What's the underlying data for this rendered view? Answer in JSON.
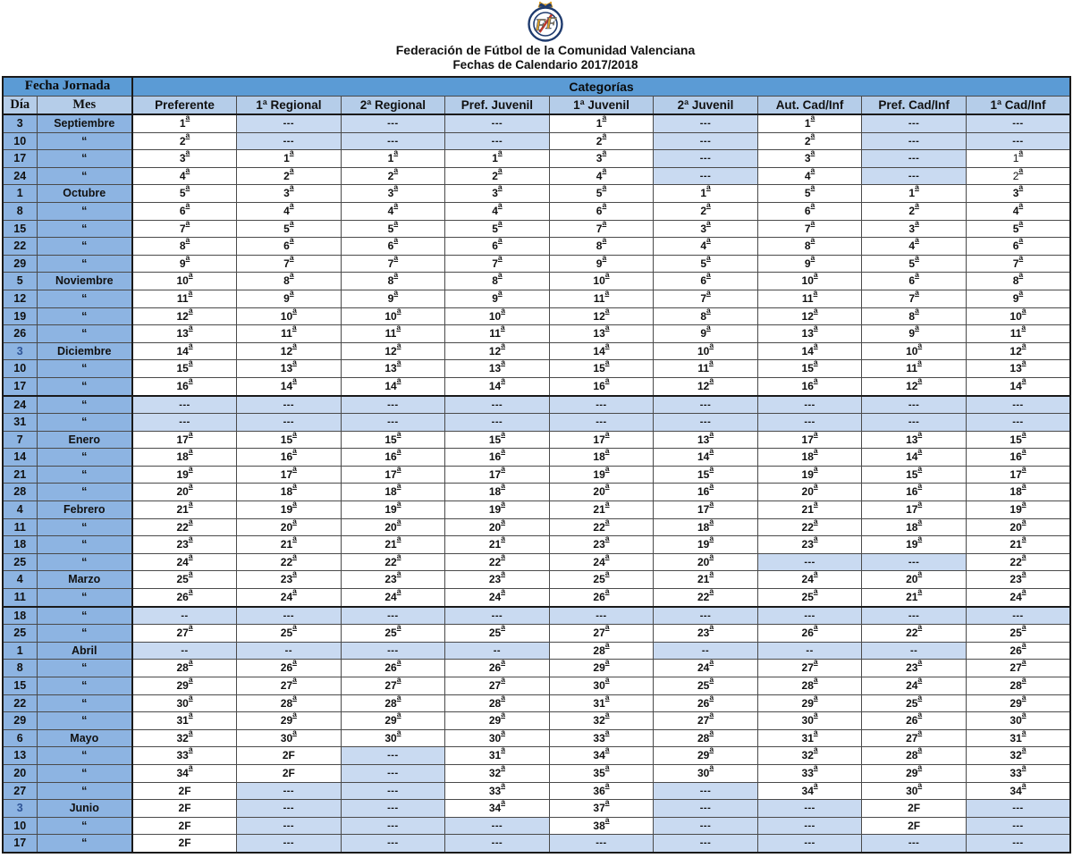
{
  "header": {
    "logo_icon": "ffcv-crest-logo",
    "title": "Federación de Fútbol de la Comunidad Valenciana",
    "subtitle": "Fechas de Calendario 2017/2018"
  },
  "colors": {
    "band_blue": "#5B9BD5",
    "column_header_blue": "#B5CDE9",
    "day_month_blue": "#8DB4E2",
    "empty_cell_blue": "#C9DAF1",
    "highlight_day_text": "#2F5496",
    "crest_navy": "#1F3B6E",
    "crest_gold": "#D99E2B",
    "crest_red": "#C0392B"
  },
  "table": {
    "corner_header": "Fecha Jornada",
    "categories_header": "Categorías",
    "day_header": "Día",
    "month_header": "Mes",
    "category_columns": [
      "Preferente",
      "1ª Regional",
      "2ª Regional",
      "Pref. Juvenil",
      "1ª Juvenil",
      "2ª Juvenil",
      "Aut. Cad/Inf",
      "Pref. Cad/Inf",
      "1ª Cad/Inf"
    ],
    "rows": [
      {
        "day": "3",
        "month": "Septiembre",
        "values": [
          "1ª",
          "---",
          "---",
          "---",
          "1ª",
          "---",
          "1ª",
          "---",
          "---"
        ]
      },
      {
        "day": "10",
        "month": "“",
        "values": [
          "2ª",
          "---",
          "---",
          "---",
          "2ª",
          "---",
          "2ª",
          "---",
          "---"
        ]
      },
      {
        "day": "17",
        "month": "“",
        "light_cells": [
          8
        ],
        "values": [
          "3ª",
          "1ª",
          "1ª",
          "1ª",
          "3ª",
          "---",
          "3ª",
          "---",
          "1ª"
        ]
      },
      {
        "day": "24",
        "month": "“",
        "light_cells": [
          8
        ],
        "values": [
          "4ª",
          "2ª",
          "2ª",
          "2ª",
          "4ª",
          "---",
          "4ª",
          "---",
          "2ª"
        ]
      },
      {
        "day": "1",
        "month": "Octubre",
        "values": [
          "5ª",
          "3ª",
          "3ª",
          "3ª",
          "5ª",
          "1ª",
          "5ª",
          "1ª",
          "3ª"
        ]
      },
      {
        "day": "8",
        "month": "“",
        "values": [
          "6ª",
          "4ª",
          "4ª",
          "4ª",
          "6ª",
          "2ª",
          "6ª",
          "2ª",
          "4ª"
        ]
      },
      {
        "day": "15",
        "month": "“",
        "values": [
          "7ª",
          "5ª",
          "5ª",
          "5ª",
          "7ª",
          "3ª",
          "7ª",
          "3ª",
          "5ª"
        ]
      },
      {
        "day": "22",
        "month": "“",
        "values": [
          "8ª",
          "6ª",
          "6ª",
          "6ª",
          "8ª",
          "4ª",
          "8ª",
          "4ª",
          "6ª"
        ]
      },
      {
        "day": "29",
        "month": "“",
        "values": [
          "9ª",
          "7ª",
          "7ª",
          "7ª",
          "9ª",
          "5ª",
          "9ª",
          "5ª",
          "7ª"
        ]
      },
      {
        "day": "5",
        "month": "Noviembre",
        "values": [
          "10ª",
          "8ª",
          "8ª",
          "8ª",
          "10ª",
          "6ª",
          "10ª",
          "6ª",
          "8ª"
        ]
      },
      {
        "day": "12",
        "month": "“",
        "values": [
          "11ª",
          "9ª",
          "9ª",
          "9ª",
          "11ª",
          "7ª",
          "11ª",
          "7ª",
          "9ª"
        ]
      },
      {
        "day": "19",
        "month": "“",
        "values": [
          "12ª",
          "10ª",
          "10ª",
          "10ª",
          "12ª",
          "8ª",
          "12ª",
          "8ª",
          "10ª"
        ]
      },
      {
        "day": "26",
        "month": "“",
        "values": [
          "13ª",
          "11ª",
          "11ª",
          "11ª",
          "13ª",
          "9ª",
          "13ª",
          "9ª",
          "11ª"
        ]
      },
      {
        "day": "3",
        "month": "Diciembre",
        "day_blue": true,
        "values": [
          "14ª",
          "12ª",
          "12ª",
          "12ª",
          "14ª",
          "10ª",
          "14ª",
          "10ª",
          "12ª"
        ]
      },
      {
        "day": "10",
        "month": "“",
        "values": [
          "15ª",
          "13ª",
          "13ª",
          "13ª",
          "15ª",
          "11ª",
          "15ª",
          "11ª",
          "13ª"
        ]
      },
      {
        "day": "17",
        "month": "“",
        "values": [
          "16ª",
          "14ª",
          "14ª",
          "14ª",
          "16ª",
          "12ª",
          "16ª",
          "12ª",
          "14ª"
        ]
      },
      {
        "day": "24",
        "month": "“",
        "thick_top": true,
        "values": [
          "---",
          "---",
          "---",
          "---",
          "---",
          "---",
          "---",
          "---",
          "---"
        ]
      },
      {
        "day": "31",
        "month": "“",
        "values": [
          "---",
          "---",
          "---",
          "---",
          "---",
          "---",
          "---",
          "---",
          "---"
        ]
      },
      {
        "day": "7",
        "month": "Enero",
        "values": [
          "17ª",
          "15ª",
          "15ª",
          "15ª",
          "17ª",
          "13ª",
          "17ª",
          "13ª",
          "15ª"
        ]
      },
      {
        "day": "14",
        "month": "“",
        "values": [
          "18ª",
          "16ª",
          "16ª",
          "16ª",
          "18ª",
          "14ª",
          "18ª",
          "14ª",
          "16ª"
        ]
      },
      {
        "day": "21",
        "month": "“",
        "values": [
          "19ª",
          "17ª",
          "17ª",
          "17ª",
          "19ª",
          "15ª",
          "19ª",
          "15ª",
          "17ª"
        ]
      },
      {
        "day": "28",
        "month": "“",
        "values": [
          "20ª",
          "18ª",
          "18ª",
          "18ª",
          "20ª",
          "16ª",
          "20ª",
          "16ª",
          "18ª"
        ]
      },
      {
        "day": "4",
        "month": "Febrero",
        "values": [
          "21ª",
          "19ª",
          "19ª",
          "19ª",
          "21ª",
          "17ª",
          "21ª",
          "17ª",
          "19ª"
        ]
      },
      {
        "day": "11",
        "month": "“",
        "values": [
          "22ª",
          "20ª",
          "20ª",
          "20ª",
          "22ª",
          "18ª",
          "22ª",
          "18ª",
          "20ª"
        ]
      },
      {
        "day": "18",
        "month": "“",
        "values": [
          "23ª",
          "21ª",
          "21ª",
          "21ª",
          "23ª",
          "19ª",
          "23ª",
          "19ª",
          "21ª"
        ]
      },
      {
        "day": "25",
        "month": "“",
        "values": [
          "24ª",
          "22ª",
          "22ª",
          "22ª",
          "24ª",
          "20ª",
          "---",
          "---",
          "22ª"
        ]
      },
      {
        "day": "4",
        "month": "Marzo",
        "values": [
          "25ª",
          "23ª",
          "23ª",
          "23ª",
          "25ª",
          "21ª",
          "24ª",
          "20ª",
          "23ª"
        ]
      },
      {
        "day": "11",
        "month": "“",
        "values": [
          "26ª",
          "24ª",
          "24ª",
          "24ª",
          "26ª",
          "22ª",
          "25ª",
          "21ª",
          "24ª"
        ]
      },
      {
        "day": "18",
        "month": "“",
        "thick_top": true,
        "values": [
          "--",
          "---",
          "---",
          "---",
          "---",
          "---",
          "---",
          "---",
          "---"
        ]
      },
      {
        "day": "25",
        "month": "“",
        "values": [
          "27ª",
          "25ª",
          "25ª",
          "25ª",
          "27ª",
          "23ª",
          "26ª",
          "22ª",
          "25ª"
        ]
      },
      {
        "day": "1",
        "month": "Abril",
        "values": [
          "--",
          "--",
          "---",
          "--",
          "28ª",
          "--",
          "--",
          "--",
          "26ª"
        ]
      },
      {
        "day": "8",
        "month": "“",
        "values": [
          "28ª",
          "26ª",
          "26ª",
          "26ª",
          "29ª",
          "24ª",
          "27ª",
          "23ª",
          "27ª"
        ]
      },
      {
        "day": "15",
        "month": "“",
        "values": [
          "29ª",
          "27ª",
          "27ª",
          "27ª",
          "30ª",
          "25ª",
          "28ª",
          "24ª",
          "28ª"
        ]
      },
      {
        "day": "22",
        "month": "“",
        "values": [
          "30ª",
          "28ª",
          "28ª",
          "28ª",
          "31ª",
          "26ª",
          "29ª",
          "25ª",
          "29ª"
        ]
      },
      {
        "day": "29",
        "month": "“",
        "values": [
          "31ª",
          "29ª",
          "29ª",
          "29ª",
          "32ª",
          "27ª",
          "30ª",
          "26ª",
          "30ª"
        ]
      },
      {
        "day": "6",
        "month": "Mayo",
        "values": [
          "32ª",
          "30ª",
          "30ª",
          "30ª",
          "33ª",
          "28ª",
          "31ª",
          "27ª",
          "31ª"
        ]
      },
      {
        "day": "13",
        "month": "“",
        "values": [
          "33ª",
          "2F",
          "---",
          "31ª",
          "34ª",
          "29ª",
          "32ª",
          "28ª",
          "32ª"
        ]
      },
      {
        "day": "20",
        "month": "“",
        "values": [
          "34ª",
          "2F",
          "---",
          "32ª",
          "35ª",
          "30ª",
          "33ª",
          "29ª",
          "33ª"
        ]
      },
      {
        "day": "27",
        "month": "“",
        "values": [
          "2F",
          "---",
          "---",
          "33ª",
          "36ª",
          "---",
          "34ª",
          "30ª",
          "34ª"
        ]
      },
      {
        "day": "3",
        "month": "Junio",
        "day_blue": true,
        "values": [
          "2F",
          "---",
          "---",
          "34ª",
          "37ª",
          "---",
          "---",
          "2F",
          "---"
        ]
      },
      {
        "day": "10",
        "month": "“",
        "values": [
          "2F",
          "---",
          "---",
          "---",
          "38ª",
          "---",
          "---",
          "2F",
          "---"
        ]
      },
      {
        "day": "17",
        "month": "“",
        "values": [
          "2F",
          "---",
          "---",
          "---",
          "---",
          "---",
          "---",
          "---",
          "---"
        ]
      }
    ]
  }
}
